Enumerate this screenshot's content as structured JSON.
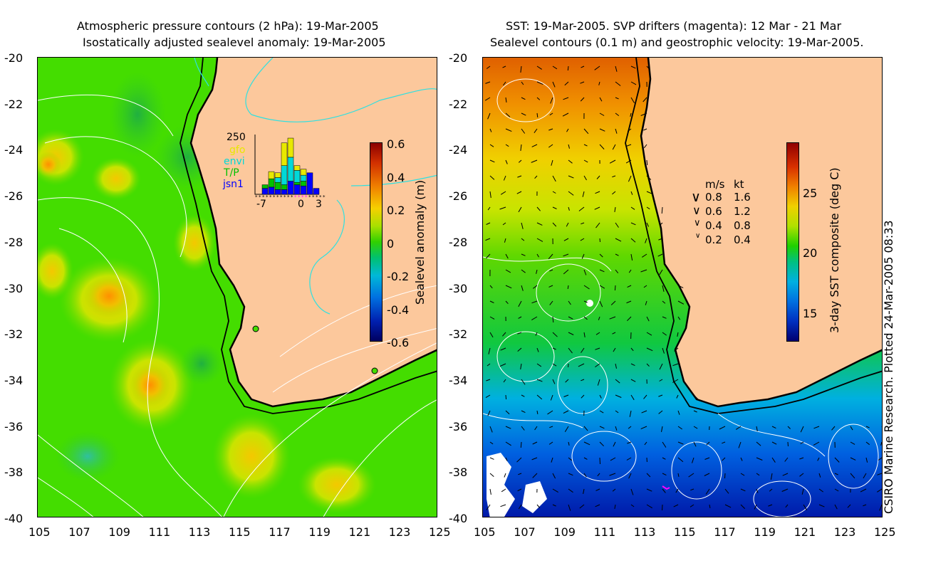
{
  "left_panel": {
    "title_line1": "Atmospheric pressure contours (2 hPa): 19-Mar-2005",
    "title_line2": "Isostatically adjusted sealevel anomaly: 19-Mar-2005",
    "y_ticks": [
      "-20",
      "-22",
      "-24",
      "-26",
      "-28",
      "-30",
      "-32",
      "-34",
      "-36",
      "-38",
      "-40"
    ],
    "x_ticks": [
      "105",
      "107",
      "109",
      "111",
      "113",
      "115",
      "117",
      "119",
      "121",
      "123",
      "125"
    ],
    "colorbar": {
      "label": "Sealevel anomaly (m)",
      "ticks": [
        "0.6",
        "0.4",
        "0.2",
        "0",
        "-0.2",
        "-0.4",
        "-0.6"
      ]
    },
    "inset": {
      "ymax_label": "250",
      "legend": [
        {
          "name": "gfo",
          "color": "#e8e800"
        },
        {
          "name": "envi",
          "color": "#00d8d8"
        },
        {
          "name": "T/P",
          "color": "#00c000"
        },
        {
          "name": "jsn1",
          "color": "#0000ff"
        }
      ],
      "x_ticks": [
        "-7",
        "0",
        "3"
      ],
      "bars": [
        {
          "day": -7,
          "jsn1": 0,
          "tp": 0,
          "envi": 0,
          "gfo": 0
        },
        {
          "day": -6,
          "jsn1": 25,
          "tp": 15,
          "envi": 0,
          "gfo": 0
        },
        {
          "day": -5,
          "jsn1": 30,
          "tp": 35,
          "envi": 0,
          "gfo": 30
        },
        {
          "day": -4,
          "jsn1": 20,
          "tp": 30,
          "envi": 20,
          "gfo": 20
        },
        {
          "day": -3,
          "jsn1": 20,
          "tp": 20,
          "envi": 80,
          "gfo": 95
        },
        {
          "day": -2,
          "jsn1": 55,
          "tp": 0,
          "envi": 100,
          "gfo": 80
        },
        {
          "day": -1,
          "jsn1": 40,
          "tp": 10,
          "envi": 50,
          "gfo": 20
        },
        {
          "day": 0,
          "jsn1": 35,
          "tp": 20,
          "envi": 25,
          "gfo": 25
        },
        {
          "day": 1,
          "jsn1": 90,
          "tp": 0,
          "envi": 0,
          "gfo": 0
        },
        {
          "day": 2,
          "jsn1": 25,
          "tp": 0,
          "envi": 0,
          "gfo": 0
        }
      ]
    }
  },
  "right_panel": {
    "title_line1": "SST: 19-Mar-2005. SVP drifters (magenta): 12 Mar - 21 Mar",
    "title_line2": "Sealevel contours (0.1 m) and geostrophic velocity: 19-Mar-2005.",
    "y_ticks": [
      "-20",
      "-22",
      "-24",
      "-26",
      "-28",
      "-30",
      "-32",
      "-34",
      "-36",
      "-38",
      "-40"
    ],
    "x_ticks": [
      "105",
      "107",
      "109",
      "111",
      "113",
      "115",
      "117",
      "119",
      "121",
      "123",
      "125"
    ],
    "colorbar": {
      "label": "3-day SST composite (deg C)",
      "ticks": [
        "25",
        "20",
        "15"
      ]
    },
    "velocity_legend": {
      "header_ms": "m/s",
      "header_kt": "kt",
      "rows": [
        {
          "ms": "0.8",
          "kt": "1.6"
        },
        {
          "ms": "0.6",
          "kt": "1.2"
        },
        {
          "ms": "0.4",
          "kt": "0.8"
        },
        {
          "ms": "0.2",
          "kt": "0.4"
        }
      ]
    }
  },
  "credit": "CSIRO Marine Research. Plotted 24-Mar-2005 08:33",
  "colors": {
    "land": "#fcc89c",
    "ocean_green": "#44dd00",
    "coast_line": "#000000",
    "contour_white": "#ffffff",
    "contour_cyan": "#30e0e0"
  }
}
